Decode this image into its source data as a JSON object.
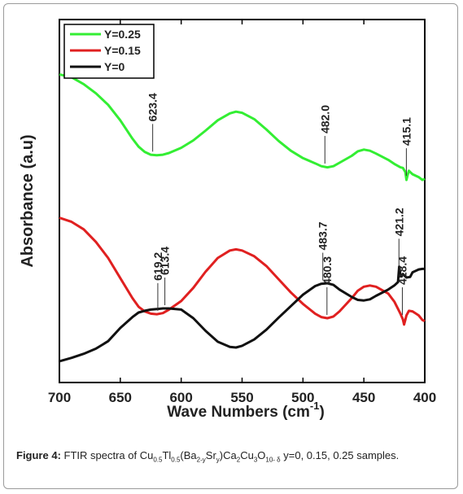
{
  "chart_data": {
    "type": "line",
    "xlabel": "Wave Numbers (cm",
    "xlabel_sup": "-1",
    "xlabel_close": ")",
    "ylabel": "Absorbance (a.u)",
    "xlim": [
      700,
      400
    ],
    "x_ticks": [
      "700",
      "650",
      "600",
      "550",
      "500",
      "450",
      "400"
    ],
    "x_tick_values": [
      700,
      650,
      600,
      550,
      500,
      450,
      400
    ],
    "y_ticks_shown": false,
    "grid": false,
    "legend_position": "top-left",
    "series": [
      {
        "name": "Y=0.25",
        "color": "#33ee33",
        "points": [
          [
            700,
            520
          ],
          [
            690,
            515
          ],
          [
            680,
            503
          ],
          [
            670,
            487
          ],
          [
            660,
            467
          ],
          [
            650,
            440
          ],
          [
            640,
            408
          ],
          [
            635,
            394
          ],
          [
            630,
            385
          ],
          [
            625,
            380
          ],
          [
            620,
            379
          ],
          [
            615,
            380
          ],
          [
            610,
            383
          ],
          [
            600,
            392
          ],
          [
            590,
            405
          ],
          [
            580,
            422
          ],
          [
            570,
            440
          ],
          [
            560,
            452
          ],
          [
            555,
            455
          ],
          [
            550,
            453
          ],
          [
            540,
            442
          ],
          [
            530,
            424
          ],
          [
            520,
            404
          ],
          [
            510,
            387
          ],
          [
            500,
            374
          ],
          [
            490,
            365
          ],
          [
            485,
            360
          ],
          [
            480,
            358
          ],
          [
            475,
            360
          ],
          [
            470,
            366
          ],
          [
            460,
            378
          ],
          [
            455,
            386
          ],
          [
            450,
            389
          ],
          [
            445,
            387
          ],
          [
            440,
            382
          ],
          [
            430,
            371
          ],
          [
            425,
            364
          ],
          [
            420,
            358
          ],
          [
            418,
            357
          ],
          [
            416,
            350
          ],
          [
            415,
            336
          ],
          [
            414,
            345
          ],
          [
            413,
            352
          ],
          [
            412,
            350
          ],
          [
            410,
            346
          ],
          [
            405,
            341
          ],
          [
            402,
            336
          ],
          [
            400,
            338
          ]
        ]
      },
      {
        "name": "Y=0.15",
        "color": "#e02020",
        "points": [
          [
            700,
            270
          ],
          [
            690,
            263
          ],
          [
            680,
            250
          ],
          [
            670,
            228
          ],
          [
            660,
            200
          ],
          [
            650,
            165
          ],
          [
            640,
            130
          ],
          [
            635,
            115
          ],
          [
            630,
            107
          ],
          [
            625,
            103
          ],
          [
            620,
            102
          ],
          [
            615,
            104
          ],
          [
            610,
            110
          ],
          [
            600,
            125
          ],
          [
            590,
            148
          ],
          [
            580,
            176
          ],
          [
            570,
            200
          ],
          [
            560,
            213
          ],
          [
            555,
            215
          ],
          [
            550,
            213
          ],
          [
            540,
            203
          ],
          [
            530,
            186
          ],
          [
            520,
            163
          ],
          [
            510,
            140
          ],
          [
            500,
            120
          ],
          [
            490,
            103
          ],
          [
            485,
            97
          ],
          [
            480,
            95
          ],
          [
            475,
            98
          ],
          [
            470,
            107
          ],
          [
            460,
            130
          ],
          [
            455,
            143
          ],
          [
            450,
            150
          ],
          [
            445,
            152
          ],
          [
            440,
            150
          ],
          [
            430,
            138
          ],
          [
            425,
            124
          ],
          [
            420,
            103
          ],
          [
            418,
            93
          ],
          [
            417,
            84
          ],
          [
            416,
            92
          ],
          [
            415,
            100
          ],
          [
            413,
            108
          ],
          [
            410,
            107
          ],
          [
            405,
            100
          ],
          [
            402,
            92
          ],
          [
            400,
            90
          ]
        ]
      },
      {
        "name": "Y=0",
        "color": "#111111",
        "points": [
          [
            700,
            20
          ],
          [
            690,
            26
          ],
          [
            680,
            33
          ],
          [
            670,
            42
          ],
          [
            660,
            55
          ],
          [
            650,
            78
          ],
          [
            640,
            97
          ],
          [
            635,
            105
          ],
          [
            630,
            108
          ],
          [
            625,
            110
          ],
          [
            620,
            111
          ],
          [
            615,
            112
          ],
          [
            610,
            112
          ],
          [
            600,
            110
          ],
          [
            590,
            95
          ],
          [
            580,
            73
          ],
          [
            570,
            54
          ],
          [
            560,
            45
          ],
          [
            555,
            44
          ],
          [
            550,
            47
          ],
          [
            540,
            58
          ],
          [
            530,
            75
          ],
          [
            520,
            96
          ],
          [
            510,
            116
          ],
          [
            500,
            136
          ],
          [
            490,
            151
          ],
          [
            485,
            155
          ],
          [
            480,
            156
          ],
          [
            475,
            153
          ],
          [
            470,
            145
          ],
          [
            460,
            132
          ],
          [
            455,
            127
          ],
          [
            450,
            126
          ],
          [
            445,
            128
          ],
          [
            440,
            134
          ],
          [
            430,
            145
          ],
          [
            425,
            152
          ],
          [
            422,
            158
          ],
          [
            421,
            185
          ],
          [
            420,
            170
          ],
          [
            419,
            168
          ],
          [
            418,
            172
          ],
          [
            415,
            166
          ],
          [
            412,
            167
          ],
          [
            410,
            175
          ],
          [
            405,
            180
          ],
          [
            402,
            181
          ],
          [
            400,
            181
          ]
        ]
      }
    ],
    "annotations": [
      {
        "text": "623.4",
        "x": 623.4,
        "series": 0
      },
      {
        "text": "482.0",
        "x": 482.0,
        "series": 0
      },
      {
        "text": "415.1",
        "x": 415.1,
        "series": 0
      },
      {
        "text": "619.2",
        "x": 619.2,
        "series": 1
      },
      {
        "text": "480.3",
        "x": 480.3,
        "series": 1
      },
      {
        "text": "418.4",
        "x": 418.4,
        "series": 1
      },
      {
        "text": "613.4",
        "x": 613.4,
        "series": 2
      },
      {
        "text": "483.7",
        "x": 483.7,
        "series": 2
      },
      {
        "text": "421.2",
        "x": 421.2,
        "series": 2
      }
    ]
  },
  "caption": {
    "label": "Figure 4:",
    "text_before": " FTIR spectra of Cu",
    "sub1": "0.5",
    "t2": "Tl",
    "sub2": "0.5",
    "t3": "(Ba",
    "sub3": "2-y",
    "t4": "Sr",
    "sub4": "y",
    "t5": ")Ca",
    "sub5": "2",
    "t6": "Cu",
    "sub6": "3",
    "t7": "O",
    "sub7": "10- δ",
    "text_after": " y=0, 0.15, 0.25 samples."
  }
}
